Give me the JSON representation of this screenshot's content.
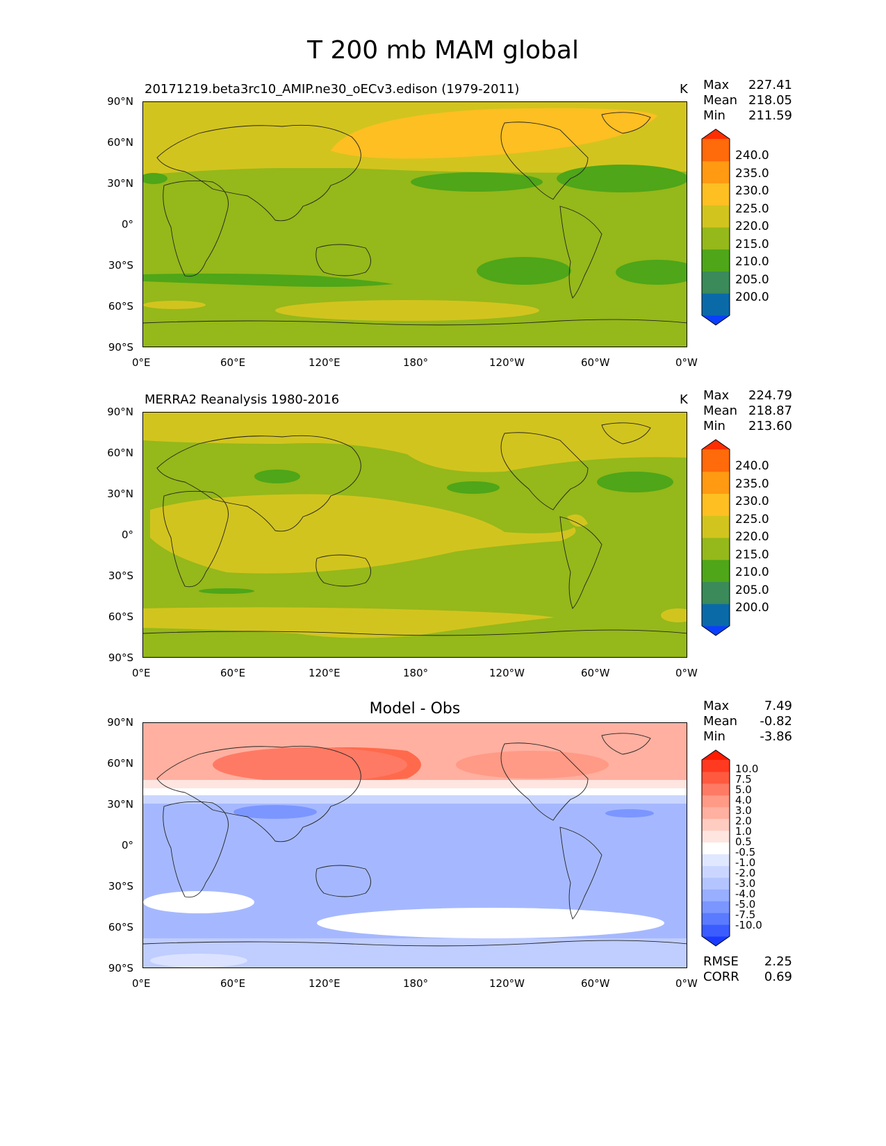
{
  "title": "T 200 mb MAM global",
  "units": "K",
  "axes": {
    "lat_ticks": [
      "90°N",
      "60°N",
      "30°N",
      "0°",
      "30°S",
      "60°S",
      "90°S"
    ],
    "lon_ticks": [
      "0°E",
      "60°E",
      "120°E",
      "180°",
      "120°W",
      "60°W",
      "0°W"
    ]
  },
  "panels": [
    {
      "title": "20171219.beta3rc10_AMIP.ne30_oECv3.edison (1979-2011)",
      "units": "K",
      "stats": [
        {
          "label": "Max",
          "value": "227.41"
        },
        {
          "label": "Mean",
          "value": "218.05"
        },
        {
          "label": "Min",
          "value": "211.59"
        }
      ],
      "colorbar_labels": [
        "240.0",
        "235.0",
        "230.0",
        "225.0",
        "220.0",
        "215.0",
        "210.0",
        "205.0",
        "200.0"
      ]
    },
    {
      "title": "MERRA2 Reanalysis 1980-2016",
      "units": "K",
      "stats": [
        {
          "label": "Max",
          "value": "224.79"
        },
        {
          "label": "Mean",
          "value": "218.87"
        },
        {
          "label": "Min",
          "value": "213.60"
        }
      ],
      "colorbar_labels": [
        "240.0",
        "235.0",
        "230.0",
        "225.0",
        "220.0",
        "215.0",
        "210.0",
        "205.0",
        "200.0"
      ]
    },
    {
      "title": "Model - Obs",
      "stats": [
        {
          "label": "Max",
          "value": "7.49"
        },
        {
          "label": "Mean",
          "value": "-0.82"
        },
        {
          "label": "Min",
          "value": "-3.86"
        }
      ],
      "colorbar_labels": [
        "10.0",
        "7.5",
        "5.0",
        "4.0",
        "3.0",
        "2.0",
        "1.0",
        "0.5",
        "-0.5",
        "-1.0",
        "-2.0",
        "-3.0",
        "-4.0",
        "-5.0",
        "-7.5",
        "-10.0"
      ],
      "metrics": [
        {
          "label": "RMSE",
          "value": "2.25"
        },
        {
          "label": "CORR",
          "value": "0.69"
        }
      ]
    }
  ],
  "colors": {
    "abs_scale": [
      "#0a3fff",
      "#0a6aa8",
      "#3a8a5a",
      "#4ea618",
      "#95b81a",
      "#d2c41e",
      "#fdbf22",
      "#ff9a12",
      "#ff6a0a",
      "#ff2e00"
    ],
    "diff_scale": [
      "#1a3bff",
      "#3b5cff",
      "#5a7bff",
      "#7b96ff",
      "#98aeff",
      "#b4c4ff",
      "#cad6ff",
      "#e0e8ff",
      "#ffffff",
      "#ffe5e0",
      "#ffccc2",
      "#ffb0a0",
      "#ff9a86",
      "#ff7a64",
      "#ff5a40",
      "#ff3a20",
      "#ff1a00"
    ]
  }
}
